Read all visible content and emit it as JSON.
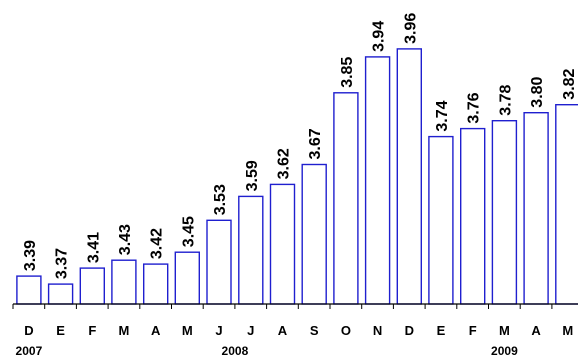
{
  "chart_data": {
    "type": "bar",
    "categories": [
      "D",
      "E",
      "F",
      "M",
      "A",
      "M",
      "J",
      "J",
      "A",
      "S",
      "O",
      "N",
      "D",
      "E",
      "F",
      "M",
      "A",
      "M"
    ],
    "values": [
      3.39,
      3.37,
      3.41,
      3.43,
      3.42,
      3.45,
      3.53,
      3.59,
      3.62,
      3.67,
      3.85,
      3.94,
      3.96,
      3.74,
      3.76,
      3.78,
      3.8,
      3.82
    ],
    "value_labels": [
      "3.39",
      "3.37",
      "3.41",
      "3.43",
      "3.42",
      "3.45",
      "3.53",
      "3.59",
      "3.62",
      "3.67",
      "3.85",
      "3.94",
      "3.96",
      "3.74",
      "3.76",
      "3.78",
      "3.80",
      "3.82"
    ],
    "year_labels": [
      {
        "text": "2007",
        "start_index": 0,
        "end_index": 0
      },
      {
        "text": "2008",
        "start_index": 1,
        "end_index": 12
      },
      {
        "text": "2009",
        "start_index": 13,
        "end_index": 17
      }
    ],
    "title": "",
    "xlabel": "",
    "ylabel": "",
    "ylim": [
      3.32,
      4.02
    ],
    "grid": false,
    "legend": "none",
    "colors": {
      "bar_stroke": "#1f1fcf",
      "bar_fill": "#ffffff",
      "axis": "#000000",
      "text": "#000000"
    }
  }
}
